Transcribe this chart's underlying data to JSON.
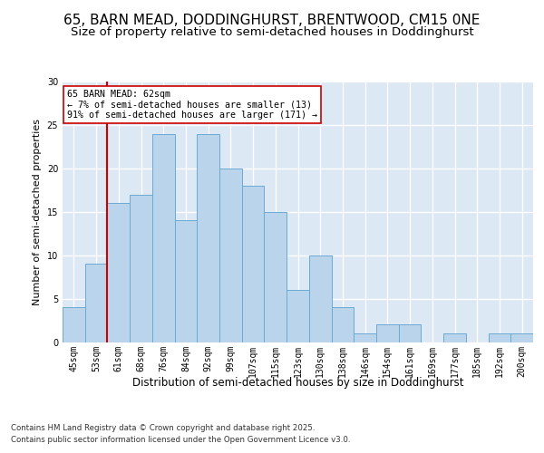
{
  "title_line1": "65, BARN MEAD, DODDINGHURST, BRENTWOOD, CM15 0NE",
  "title_line2": "Size of property relative to semi-detached houses in Doddinghurst",
  "xlabel": "Distribution of semi-detached houses by size in Doddinghurst",
  "ylabel": "Number of semi-detached properties",
  "categories": [
    "45sqm",
    "53sqm",
    "61sqm",
    "68sqm",
    "76sqm",
    "84sqm",
    "92sqm",
    "99sqm",
    "107sqm",
    "115sqm",
    "123sqm",
    "130sqm",
    "138sqm",
    "146sqm",
    "154sqm",
    "161sqm",
    "169sqm",
    "177sqm",
    "185sqm",
    "192sqm",
    "200sqm"
  ],
  "values": [
    4,
    9,
    16,
    17,
    24,
    14,
    24,
    20,
    18,
    15,
    6,
    10,
    4,
    1,
    2,
    2,
    0,
    1,
    0,
    1,
    1
  ],
  "bar_color": "#bad4ec",
  "bar_edge_color": "#6aaad4",
  "vline_color": "#cc0000",
  "vline_x_index": 2,
  "annotation_title": "65 BARN MEAD: 62sqm",
  "annotation_line1": "← 7% of semi-detached houses are smaller (13)",
  "annotation_line2": "91% of semi-detached houses are larger (171) →",
  "annotation_box_color": "#ffffff",
  "annotation_box_edge": "#cc0000",
  "footnote_line1": "Contains HM Land Registry data © Crown copyright and database right 2025.",
  "footnote_line2": "Contains public sector information licensed under the Open Government Licence v3.0.",
  "ylim": [
    0,
    30
  ],
  "yticks": [
    0,
    5,
    10,
    15,
    20,
    25,
    30
  ],
  "background_color": "#ffffff",
  "plot_bg_color": "#dde8f5",
  "grid_color": "#ffffff",
  "title_fontsize": 11,
  "subtitle_fontsize": 9.5,
  "axis_label_fontsize": 8.5,
  "tick_fontsize": 7,
  "ylabel_fontsize": 8
}
